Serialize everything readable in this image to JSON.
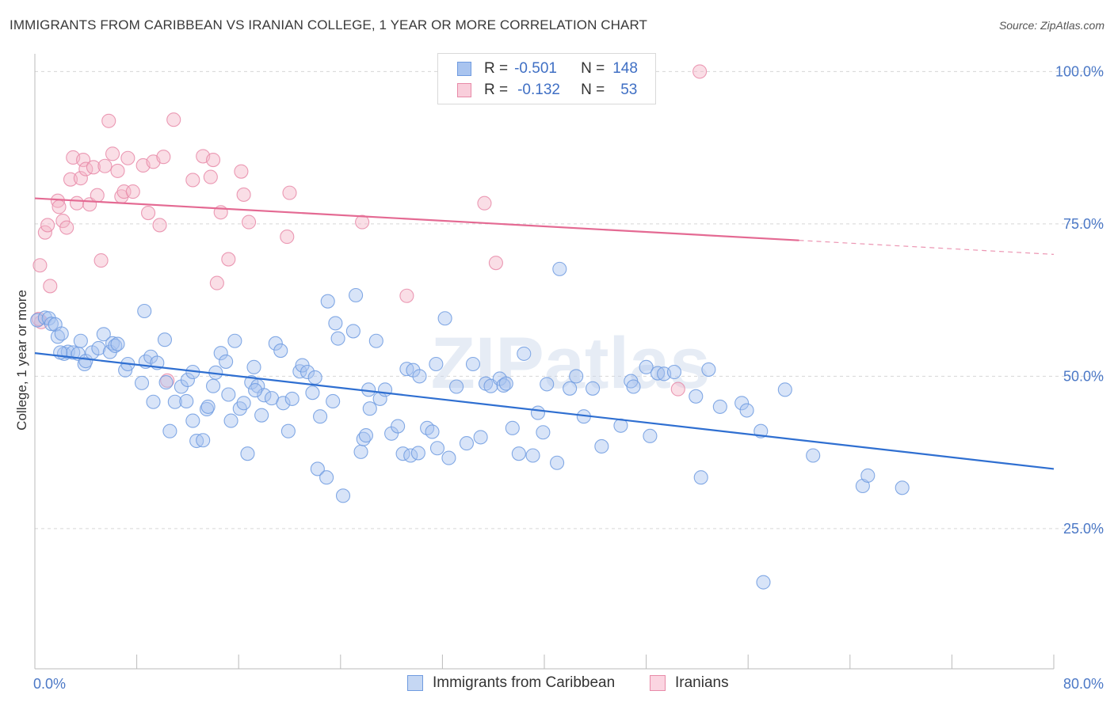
{
  "title": "IMMIGRANTS FROM CARIBBEAN VS IRANIAN COLLEGE, 1 YEAR OR MORE CORRELATION CHART",
  "source": "Source: ZipAtlas.com",
  "watermark": "ZIPatlas",
  "legend": {
    "rows": [
      {
        "r_label": "R =",
        "r_value": "-0.501",
        "n_label": "N =",
        "n_value": "148",
        "color": "#a9c4ef"
      },
      {
        "r_label": "R =",
        "r_value": "-0.132",
        "n_label": "N =",
        "n_value": "53",
        "color": "#f5b5c8"
      }
    ]
  },
  "bottom_legend": [
    {
      "label": "Immigrants from Caribbean",
      "color": "#a9c4ef"
    },
    {
      "label": "Iranians",
      "color": "#f5b5c8"
    }
  ],
  "chart_data": {
    "type": "scatter",
    "title": "IMMIGRANTS FROM CARIBBEAN VS IRANIAN COLLEGE, 1 YEAR OR MORE CORRELATION CHART",
    "xlabel": "",
    "ylabel": "College, 1 year or more",
    "xlim": [
      0,
      80
    ],
    "ylim": [
      2,
      102
    ],
    "x_tick_labels": [
      {
        "value": 0,
        "label": "0.0%"
      },
      {
        "value": 80,
        "label": "80.0%"
      }
    ],
    "y_tick_labels": [
      {
        "value": 25,
        "label": "25.0%"
      },
      {
        "value": 50,
        "label": "50.0%"
      },
      {
        "value": 75,
        "label": "75.0%"
      },
      {
        "value": 100,
        "label": "100.0%"
      }
    ],
    "grid": "horizontal dashed",
    "legend_position": "top-center",
    "series": [
      {
        "name": "Immigrants from Caribbean",
        "color": "#6f9be0",
        "fill": "#a9c4ef",
        "trend": {
          "x": [
            0,
            80
          ],
          "y": [
            53.8,
            34.8
          ]
        },
        "points": [
          [
            0.2,
            59.2
          ],
          [
            0.8,
            59.6
          ],
          [
            1.1,
            59.5
          ],
          [
            1.3,
            58.6
          ],
          [
            1.6,
            58.5
          ],
          [
            1.8,
            56.5
          ],
          [
            2.1,
            57.0
          ],
          [
            2.3,
            53.7
          ],
          [
            2.6,
            54.0
          ],
          [
            3.0,
            53.9
          ],
          [
            3.4,
            53.7
          ],
          [
            3.9,
            52.0
          ],
          [
            3.6,
            55.8
          ],
          [
            4.0,
            52.5
          ],
          [
            4.5,
            53.9
          ],
          [
            5.0,
            54.6
          ],
          [
            5.4,
            56.9
          ],
          [
            5.9,
            54.0
          ],
          [
            6.1,
            55.4
          ],
          [
            6.3,
            55.0
          ],
          [
            7.1,
            51.0
          ],
          [
            7.3,
            52.0
          ],
          [
            8.4,
            48.9
          ],
          [
            8.7,
            52.4
          ],
          [
            8.6,
            60.7
          ],
          [
            9.1,
            53.2
          ],
          [
            9.6,
            52.2
          ],
          [
            9.3,
            45.8
          ],
          [
            10.2,
            56.0
          ],
          [
            10.3,
            49.0
          ],
          [
            10.6,
            41.0
          ],
          [
            11.0,
            45.8
          ],
          [
            11.5,
            48.3
          ],
          [
            11.9,
            45.9
          ],
          [
            12.0,
            49.4
          ],
          [
            12.4,
            50.7
          ],
          [
            12.4,
            42.7
          ],
          [
            12.7,
            39.4
          ],
          [
            13.2,
            39.5
          ],
          [
            13.5,
            44.6
          ],
          [
            13.6,
            45.0
          ],
          [
            14.2,
            50.6
          ],
          [
            14.6,
            53.8
          ],
          [
            15.0,
            52.4
          ],
          [
            15.2,
            47.0
          ],
          [
            15.4,
            42.7
          ],
          [
            15.7,
            55.8
          ],
          [
            16.1,
            44.7
          ],
          [
            16.4,
            45.6
          ],
          [
            16.7,
            37.3
          ],
          [
            17.0,
            49.0
          ],
          [
            17.2,
            51.5
          ],
          [
            17.5,
            48.4
          ],
          [
            17.8,
            43.6
          ],
          [
            18.0,
            46.9
          ],
          [
            18.6,
            46.4
          ],
          [
            18.9,
            55.4
          ],
          [
            19.3,
            54.2
          ],
          [
            19.5,
            45.6
          ],
          [
            19.9,
            41.0
          ],
          [
            20.2,
            46.3
          ],
          [
            20.8,
            50.8
          ],
          [
            21.0,
            51.8
          ],
          [
            21.4,
            50.7
          ],
          [
            22.0,
            49.8
          ],
          [
            22.4,
            43.4
          ],
          [
            21.8,
            47.3
          ],
          [
            22.2,
            34.8
          ],
          [
            22.9,
            33.4
          ],
          [
            23.0,
            62.3
          ],
          [
            23.4,
            45.9
          ],
          [
            23.8,
            56.2
          ],
          [
            23.6,
            58.7
          ],
          [
            24.2,
            30.4
          ],
          [
            25.0,
            57.4
          ],
          [
            25.2,
            63.3
          ],
          [
            25.6,
            37.6
          ],
          [
            25.8,
            39.7
          ],
          [
            26.2,
            47.8
          ],
          [
            26.3,
            44.7
          ],
          [
            26.8,
            55.8
          ],
          [
            27.1,
            46.3
          ],
          [
            27.5,
            47.8
          ],
          [
            28.0,
            40.6
          ],
          [
            28.5,
            41.8
          ],
          [
            28.9,
            37.3
          ],
          [
            29.2,
            51.2
          ],
          [
            29.7,
            51.0
          ],
          [
            29.5,
            37.0
          ],
          [
            30.2,
            50.0
          ],
          [
            30.8,
            41.5
          ],
          [
            31.2,
            40.9
          ],
          [
            31.5,
            52.0
          ],
          [
            31.6,
            38.2
          ],
          [
            32.2,
            59.5
          ],
          [
            32.5,
            36.6
          ],
          [
            33.1,
            48.3
          ],
          [
            33.9,
            39.0
          ],
          [
            34.4,
            52.0
          ],
          [
            35.0,
            40.0
          ],
          [
            35.4,
            48.8
          ],
          [
            35.8,
            48.4
          ],
          [
            36.5,
            49.6
          ],
          [
            36.8,
            48.5
          ],
          [
            37.0,
            48.8
          ],
          [
            37.5,
            41.5
          ],
          [
            38.0,
            37.3
          ],
          [
            38.4,
            53.7
          ],
          [
            39.1,
            37.0
          ],
          [
            39.5,
            44.0
          ],
          [
            39.9,
            40.8
          ],
          [
            40.2,
            48.7
          ],
          [
            41.0,
            35.8
          ],
          [
            41.2,
            67.6
          ],
          [
            42.0,
            48.0
          ],
          [
            42.5,
            50.0
          ],
          [
            43.1,
            43.4
          ],
          [
            43.8,
            48.0
          ],
          [
            44.5,
            38.5
          ],
          [
            46.0,
            41.9
          ],
          [
            46.8,
            49.2
          ],
          [
            47.0,
            48.3
          ],
          [
            48.0,
            51.5
          ],
          [
            48.3,
            40.2
          ],
          [
            48.9,
            50.5
          ],
          [
            49.4,
            50.4
          ],
          [
            50.2,
            50.7
          ],
          [
            51.9,
            46.7
          ],
          [
            52.3,
            33.4
          ],
          [
            52.9,
            51.1
          ],
          [
            53.8,
            45.0
          ],
          [
            55.5,
            45.6
          ],
          [
            55.9,
            44.4
          ],
          [
            57.0,
            41.0
          ],
          [
            57.2,
            16.2
          ],
          [
            58.9,
            47.8
          ],
          [
            61.1,
            37.0
          ],
          [
            65.0,
            32.0
          ],
          [
            65.4,
            33.7
          ],
          [
            68.1,
            31.7
          ],
          [
            2.0,
            53.9
          ],
          [
            6.5,
            55.3
          ],
          [
            14.0,
            48.4
          ],
          [
            17.3,
            47.7
          ],
          [
            26.0,
            40.3
          ],
          [
            30.1,
            37.4
          ]
        ]
      },
      {
        "name": "Iranians",
        "color": "#e88aa8",
        "fill": "#f5b5c8",
        "trend": {
          "x": [
            0,
            60
          ],
          "y": [
            79.2,
            72.3
          ]
        },
        "trend_dashed": {
          "x": [
            60,
            80
          ],
          "y": [
            72.3,
            70.0
          ]
        },
        "points": [
          [
            0.4,
            68.2
          ],
          [
            0.8,
            73.6
          ],
          [
            1.0,
            74.8
          ],
          [
            1.2,
            64.8
          ],
          [
            1.8,
            78.8
          ],
          [
            1.9,
            77.8
          ],
          [
            2.2,
            75.5
          ],
          [
            2.5,
            74.4
          ],
          [
            2.8,
            82.3
          ],
          [
            3.0,
            85.9
          ],
          [
            3.3,
            78.4
          ],
          [
            3.6,
            82.5
          ],
          [
            3.8,
            85.5
          ],
          [
            4.0,
            84.0
          ],
          [
            4.3,
            78.2
          ],
          [
            4.6,
            84.3
          ],
          [
            4.9,
            79.7
          ],
          [
            5.2,
            69.0
          ],
          [
            5.5,
            84.5
          ],
          [
            5.8,
            91.9
          ],
          [
            6.1,
            86.5
          ],
          [
            6.5,
            83.7
          ],
          [
            6.8,
            79.5
          ],
          [
            7.0,
            80.3
          ],
          [
            7.3,
            85.8
          ],
          [
            7.7,
            80.3
          ],
          [
            8.5,
            84.6
          ],
          [
            8.9,
            76.8
          ],
          [
            9.3,
            85.2
          ],
          [
            9.8,
            74.8
          ],
          [
            10.1,
            86.0
          ],
          [
            10.4,
            49.3
          ],
          [
            10.9,
            92.1
          ],
          [
            12.4,
            82.2
          ],
          [
            13.2,
            86.1
          ],
          [
            13.8,
            82.7
          ],
          [
            14.0,
            85.5
          ],
          [
            14.3,
            65.3
          ],
          [
            14.6,
            76.9
          ],
          [
            15.2,
            69.2
          ],
          [
            16.2,
            83.6
          ],
          [
            16.4,
            79.8
          ],
          [
            16.8,
            75.3
          ],
          [
            20.0,
            80.1
          ],
          [
            19.8,
            72.9
          ],
          [
            25.7,
            75.3
          ],
          [
            29.2,
            63.2
          ],
          [
            35.3,
            78.4
          ],
          [
            36.2,
            68.6
          ],
          [
            52.2,
            100.0
          ],
          [
            0.5,
            58.9
          ],
          [
            0.3,
            59.4
          ],
          [
            50.5,
            47.9
          ]
        ]
      }
    ]
  }
}
